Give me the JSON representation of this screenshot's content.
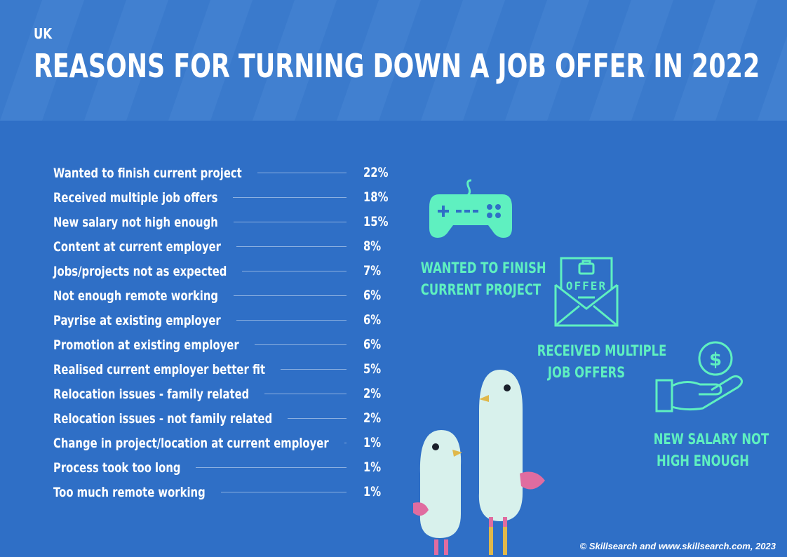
{
  "region": "UK",
  "title": "REASONS FOR TURNING DOWN A JOB OFFER IN 2022",
  "chart_data": {
    "type": "table",
    "title": "REASONS FOR TURNING DOWN A JOB OFFER IN 2022",
    "categories": [
      "Wanted to finish current project",
      "Received multiple job offers",
      "New salary not high enough",
      "Content at current employer",
      "Jobs/projects not as expected",
      "Not enough remote working",
      "Payrise at existing employer",
      "Promotion at existing employer",
      "Realised current employer better fit",
      "Relocation issues - family related",
      "Relocation issues - not family related",
      "Change in project/location at current employer",
      "Process took too long",
      "Too much remote working"
    ],
    "values": [
      22,
      18,
      15,
      8,
      7,
      6,
      6,
      6,
      5,
      2,
      2,
      1,
      1,
      1
    ],
    "value_labels": [
      "22%",
      "18%",
      "15%",
      "8%",
      "7%",
      "6%",
      "6%",
      "6%",
      "5%",
      "2%",
      "2%",
      "1%",
      "1%",
      "1%"
    ]
  },
  "highlights": [
    {
      "icon": "game-controller-icon",
      "line1": "WANTED TO FINISH",
      "line2": "CURRENT PROJECT"
    },
    {
      "icon": "offer-envelope-icon",
      "line1": "RECEIVED MULTIPLE",
      "line2": "JOB OFFERS",
      "badge": "OFFER"
    },
    {
      "icon": "hand-dollar-icon",
      "line1": "NEW SALARY NOT",
      "line2": "HIGH ENOUGH"
    }
  ],
  "footer": "© Skillsearch and www.skillsearch.com, 2023",
  "colors": {
    "background": "#2f6fc6",
    "accent": "#5ff0c0",
    "text": "#ffffff"
  }
}
